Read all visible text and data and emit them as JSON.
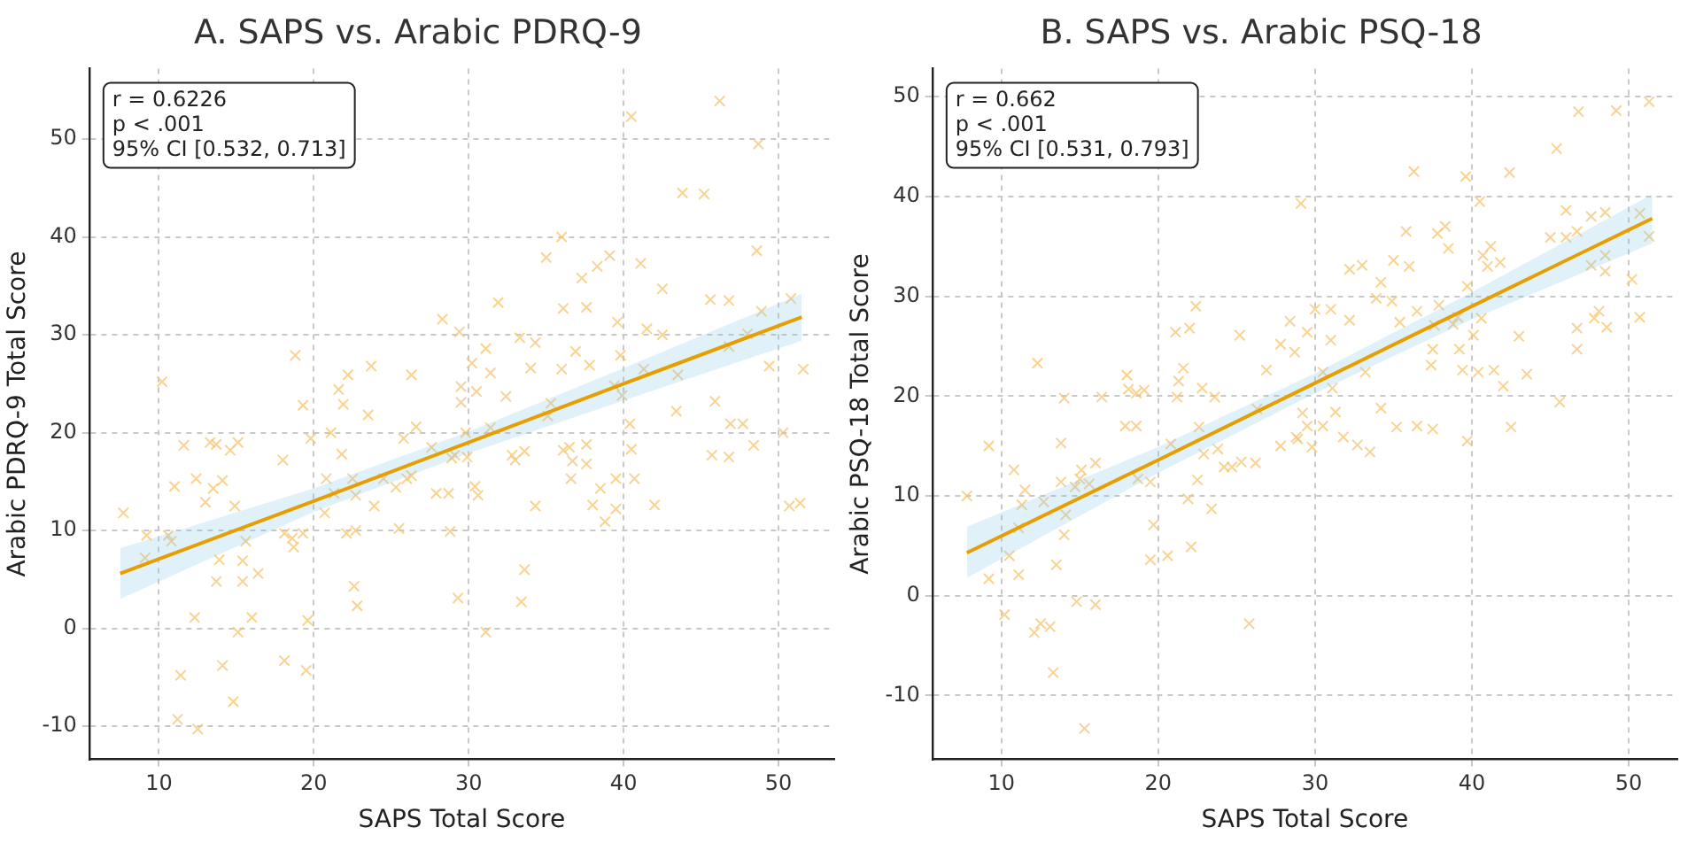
{
  "chart_data": [
    {
      "type": "scatter",
      "title": "A. SAPS vs. Arabic PDRQ-9",
      "xlabel": "SAPS Total Score",
      "ylabel": "Arabic PDRQ-9 Total Score",
      "xlim": [
        5.5,
        53.6
      ],
      "ylim": [
        -13.4,
        57.2
      ],
      "xticks": [
        10,
        20,
        30,
        40,
        50
      ],
      "yticks": [
        -10,
        0,
        10,
        20,
        30,
        40,
        50
      ],
      "grid": true,
      "annotations": [
        "r = 0.6226",
        "p < .001",
        "95% CI [0.532, 0.713]"
      ],
      "series": [
        {
          "color": "#f5c46e",
          "marker": "cross",
          "x": [
            7.7,
            10.2,
            9.2,
            10.6,
            9.1,
            10.8,
            11.0,
            11.6,
            12.4,
            13.0,
            13.3,
            13.7,
            13.5,
            14.1,
            14.6,
            15.1,
            14.9,
            13.9,
            13.7,
            15.4,
            15.4,
            15.6,
            16.4,
            16.0,
            15.1,
            12.3,
            11.4,
            14.1,
            14.8,
            11.2,
            12.5,
            18.1,
            19.5,
            19.6,
            18.0,
            18.8,
            19.3,
            19.8,
            18.1,
            18.6,
            18.7,
            19.3,
            20.7,
            21.1,
            20.8,
            21.6,
            21.9,
            21.8,
            22.2,
            22.5,
            22.7,
            21.3,
            22.1,
            22.7,
            22.6,
            22.8,
            23.5,
            23.7,
            23.9,
            24.5,
            25.3,
            25.5,
            26.0,
            26.3,
            26.3,
            26.6,
            25.8,
            27.6,
            27.9,
            28.7,
            28.8,
            28.3,
            29.3,
            29.4,
            29.5,
            29.5,
            28.9,
            31.9,
            31.1,
            30.2,
            31.4,
            30.5,
            32.4,
            29.8,
            31.4,
            29.1,
            29.9,
            30.4,
            30.6,
            31.1,
            33.4,
            33.6,
            34.3,
            32.8,
            33.0,
            33.6,
            33.3,
            34.3,
            34.0,
            35.0,
            36.0,
            36.1,
            36.0,
            36.9,
            37.6,
            37.3,
            38.3,
            39.1,
            37.8,
            35.3,
            35.1,
            36.1,
            36.5,
            36.7,
            36.6,
            37.6,
            37.6,
            38.5,
            38.0,
            38.8,
            39.5,
            39.5,
            40.7,
            42.0,
            40.5,
            40.4,
            39.9,
            39.4,
            39.8,
            39.6,
            41.3,
            41.5,
            42.5,
            42.5,
            41.1,
            40.5,
            43.4,
            43.5,
            43.8,
            45.2,
            45.6,
            46.8,
            45.9,
            45.7,
            46.8,
            46.9,
            47.7,
            48.4,
            46.8,
            48.0,
            48.9,
            48.6,
            48.7,
            46.2,
            49.4,
            50.3,
            50.8,
            51.6,
            50.7,
            51.4
          ],
          "values": [
            11.8,
            25.2,
            9.5,
            9.5,
            7.2,
            8.9,
            14.5,
            18.7,
            15.3,
            12.9,
            19.0,
            18.8,
            14.3,
            15.1,
            18.2,
            19.0,
            12.5,
            7.0,
            4.8,
            6.9,
            4.8,
            8.9,
            5.6,
            1.1,
            -0.4,
            1.1,
            -4.8,
            -3.8,
            -7.5,
            -9.3,
            -10.3,
            -3.3,
            -4.3,
            0.8,
            17.2,
            27.9,
            22.8,
            19.4,
            9.7,
            9.2,
            8.3,
            9.7,
            11.8,
            20.0,
            15.3,
            24.4,
            22.9,
            17.8,
            25.9,
            15.3,
            13.6,
            13.8,
            9.7,
            10.0,
            4.3,
            2.3,
            21.8,
            26.8,
            12.5,
            15.3,
            14.4,
            10.2,
            15.3,
            15.6,
            25.9,
            20.6,
            19.4,
            18.5,
            13.8,
            13.8,
            9.9,
            31.6,
            3.1,
            30.3,
            24.7,
            23.1,
            17.4,
            33.3,
            28.6,
            27.1,
            26.1,
            24.2,
            23.7,
            20.0,
            20.5,
            17.7,
            17.5,
            14.5,
            13.6,
            -0.4,
            2.7,
            6.0,
            12.5,
            17.7,
            17.2,
            18.1,
            29.7,
            29.2,
            26.6,
            37.9,
            40.0,
            32.7,
            26.5,
            28.3,
            32.8,
            35.8,
            37.0,
            38.1,
            26.9,
            23.0,
            21.7,
            18.2,
            18.5,
            17.1,
            15.3,
            18.8,
            16.8,
            14.3,
            12.6,
            10.9,
            12.2,
            15.3,
            15.3,
            12.6,
            18.3,
            20.9,
            23.8,
            24.8,
            27.9,
            31.3,
            26.5,
            30.6,
            30.0,
            34.7,
            37.3,
            52.3,
            22.2,
            25.9,
            44.5,
            44.4,
            33.6,
            33.5,
            23.2,
            17.7,
            17.5,
            20.9,
            20.9,
            18.7,
            28.8,
            30.1,
            32.4,
            38.6,
            49.5,
            53.9,
            26.8,
            20.0,
            33.7,
            26.5,
            12.5,
            12.8
          ]
        },
        {
          "type": "line",
          "color": "#e69f00",
          "marker": "none",
          "x": [
            7.5,
            20,
            30,
            40,
            51.5
          ],
          "values": [
            5.6,
            13.0,
            19.0,
            25.0,
            31.8
          ],
          "lower": [
            3.0,
            11.9,
            17.9,
            23.3,
            29.4
          ],
          "upper": [
            8.2,
            14.3,
            20.1,
            26.6,
            34.2
          ]
        }
      ]
    },
    {
      "type": "scatter",
      "title": "B. SAPS vs. Arabic PSQ-18",
      "xlabel": "SAPS Total Score",
      "ylabel": "Arabic PSQ-18 Total Score",
      "xlim": [
        5.6,
        53.1
      ],
      "ylim": [
        -16.4,
        52.8
      ],
      "xticks": [
        10,
        20,
        30,
        40,
        50
      ],
      "yticks": [
        -10,
        0,
        10,
        20,
        30,
        40,
        50
      ],
      "grid": true,
      "annotations": [
        "r = 0.662",
        "p < .001",
        "95% CI [0.531, 0.793]"
      ],
      "series": [
        {
          "color": "#f5c46e",
          "marker": "cross",
          "x": [
            7.8,
            9.2,
            9.2,
            10.2,
            10.8,
            11.1,
            10.5,
            11.1,
            11.5,
            11.3,
            12.3,
            12.7,
            12.1,
            12.5,
            13.1,
            13.3,
            13.5,
            14.0,
            14.1,
            14.0,
            13.8,
            13.8,
            14.7,
            15.1,
            15.6,
            15.0,
            16.0,
            14.8,
            16.0,
            15.3,
            16.4,
            18.0,
            18.1,
            18.6,
            19.1,
            17.9,
            18.6,
            18.7,
            19.5,
            19.7,
            19.5,
            20.6,
            22.1,
            20.8,
            21.3,
            21.2,
            21.6,
            21.1,
            22.0,
            22.4,
            22.8,
            23.6,
            22.6,
            22.9,
            22.5,
            21.9,
            23.4,
            23.8,
            24.2,
            24.7,
            25.3,
            26.2,
            25.2,
            25.8,
            26.9,
            26.3,
            27.8,
            28.4,
            28.7,
            29.1,
            27.8,
            28.9,
            29.2,
            29.5,
            30.0,
            31.0,
            31.0,
            32.2,
            30.5,
            31.1,
            29.5,
            30.5,
            31.3,
            28.8,
            29.8,
            31.8,
            32.7,
            33.5,
            33.2,
            34.2,
            35.2,
            36.5,
            37.5,
            39.7,
            32.2,
            33.0,
            34.2,
            33.9,
            34.9,
            35.4,
            35.0,
            35.8,
            36.0,
            36.3,
            36.5,
            37.6,
            37.8,
            38.3,
            38.5,
            37.5,
            37.4,
            37.9,
            38.8,
            39.1,
            39.2,
            39.4,
            39.7,
            39.6,
            40.1,
            40.6,
            40.4,
            41.4,
            42.0,
            40.5,
            40.7,
            41.2,
            41.0,
            41.8,
            42.4,
            42.5,
            43.0,
            43.5,
            45.6,
            45.4,
            45.0,
            46.0,
            46.0,
            46.7,
            46.7,
            46.7,
            46.8,
            47.6,
            47.6,
            47.8,
            48.1,
            48.5,
            48.5,
            48.6,
            48.5,
            49.2,
            50.2,
            50.7,
            50.7,
            51.3,
            51.3
          ],
          "values": [
            10.0,
            15.0,
            1.7,
            -1.9,
            12.6,
            6.8,
            4.0,
            2.1,
            10.6,
            9.1,
            23.3,
            9.4,
            -3.7,
            -2.8,
            -3.1,
            -7.7,
            3.1,
            6.1,
            8.1,
            19.8,
            15.3,
            11.4,
            10.9,
            12.6,
            11.2,
            11.7,
            13.3,
            -0.6,
            -0.9,
            -13.3,
            19.9,
            22.1,
            20.7,
            20.3,
            20.6,
            17.0,
            17.0,
            11.7,
            11.4,
            7.1,
            3.6,
            4.0,
            4.9,
            15.2,
            21.5,
            19.9,
            22.8,
            26.4,
            26.8,
            29.0,
            20.8,
            19.9,
            16.9,
            14.2,
            11.6,
            9.7,
            8.7,
            14.7,
            12.9,
            12.9,
            13.4,
            13.3,
            26.1,
            -2.8,
            22.6,
            18.7,
            25.2,
            27.5,
            24.4,
            39.3,
            15.0,
            15.7,
            18.3,
            26.4,
            28.7,
            28.7,
            25.6,
            27.6,
            22.4,
            20.8,
            17.0,
            17.0,
            18.4,
            15.9,
            14.9,
            15.9,
            15.1,
            14.4,
            22.4,
            18.8,
            16.9,
            17.0,
            16.7,
            15.5,
            32.7,
            33.1,
            31.4,
            29.8,
            29.5,
            27.4,
            33.6,
            36.5,
            33.0,
            42.5,
            28.5,
            27.1,
            36.3,
            37.0,
            34.8,
            24.7,
            23.1,
            29.1,
            27.2,
            27.9,
            24.7,
            22.6,
            31.0,
            42.0,
            26.1,
            27.8,
            22.4,
            22.6,
            21.0,
            39.5,
            34.1,
            35.0,
            33.0,
            33.4,
            42.4,
            16.9,
            26.0,
            22.2,
            19.4,
            44.8,
            35.9,
            38.6,
            35.9,
            36.5,
            26.8,
            24.7,
            48.5,
            38.0,
            33.1,
            27.8,
            28.5,
            34.1,
            32.5,
            26.9,
            38.4,
            48.6,
            31.7,
            27.9,
            38.3,
            36.0,
            49.5
          ]
        },
        {
          "type": "line",
          "color": "#e69f00",
          "marker": "none",
          "x": [
            7.8,
            20,
            30,
            40,
            51.5
          ],
          "values": [
            4.3,
            13.6,
            21.3,
            29.0,
            37.8
          ],
          "lower": [
            1.8,
            12.3,
            20.3,
            27.7,
            35.3
          ],
          "upper": [
            6.9,
            14.9,
            22.3,
            30.4,
            40.2
          ]
        }
      ]
    }
  ]
}
